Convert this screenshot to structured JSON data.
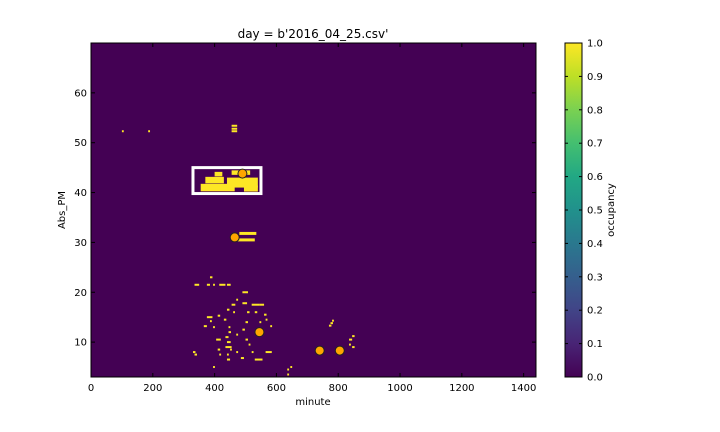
{
  "chart_data": {
    "type": "heatmap",
    "title": "day = b'2016_04_25.csv'",
    "xlabel": "minute",
    "ylabel": "Abs_PM",
    "xlim": [
      0,
      1440
    ],
    "ylim": [
      3,
      70
    ],
    "xticks": [
      0,
      200,
      400,
      600,
      800,
      1000,
      1200,
      1400
    ],
    "yticks": [
      10,
      20,
      30,
      40,
      50,
      60
    ],
    "background_value": 0.0,
    "colormap": "viridis",
    "colors": {
      "low": "#440154",
      "high": "#fde725",
      "marker": "#ffa500",
      "box": "#ffffff"
    },
    "colorbar": {
      "label": "occupancy",
      "range": [
        0,
        1
      ],
      "ticks": [
        "0.0",
        "0.1",
        "0.2",
        "0.3",
        "0.4",
        "0.5",
        "0.6",
        "0.7",
        "0.8",
        "0.9",
        "1.0"
      ]
    },
    "occupied_cells": [
      [
        100,
        52.3,
        6,
        0.4
      ],
      [
        185,
        52.3,
        6,
        0.4
      ],
      [
        455,
        53.4,
        18,
        0.4
      ],
      [
        455,
        52.8,
        18,
        0.4
      ],
      [
        455,
        52.3,
        18,
        0.4
      ],
      [
        355,
        41.0,
        110,
        1.5
      ],
      [
        370,
        42.5,
        60,
        1.3
      ],
      [
        400,
        43.7,
        25,
        0.9
      ],
      [
        440,
        42.0,
        100,
        2.0
      ],
      [
        455,
        44.0,
        60,
        0.9
      ],
      [
        495,
        40.8,
        45,
        1.2
      ],
      [
        480,
        31.8,
        55,
        0.6
      ],
      [
        475,
        30.5,
        55,
        0.6
      ],
      [
        335,
        21.5,
        15,
        0.4
      ],
      [
        385,
        23.0,
        8,
        0.4
      ],
      [
        375,
        21.5,
        10,
        0.4
      ],
      [
        395,
        21.5,
        6,
        0.4
      ],
      [
        415,
        21.5,
        20,
        0.4
      ],
      [
        440,
        21.5,
        12,
        0.4
      ],
      [
        490,
        20.0,
        18,
        0.4
      ],
      [
        470,
        18.5,
        6,
        0.4
      ],
      [
        455,
        17.5,
        12,
        0.4
      ],
      [
        490,
        17.8,
        15,
        0.4
      ],
      [
        520,
        17.5,
        25,
        0.4
      ],
      [
        545,
        17.5,
        15,
        0.4
      ],
      [
        440,
        16.5,
        8,
        0.4
      ],
      [
        460,
        16.0,
        6,
        0.4
      ],
      [
        505,
        16.0,
        8,
        0.4
      ],
      [
        530,
        16.0,
        8,
        0.4
      ],
      [
        560,
        15.5,
        8,
        0.4
      ],
      [
        410,
        15.3,
        8,
        0.4
      ],
      [
        375,
        15.0,
        18,
        0.4
      ],
      [
        385,
        14.2,
        6,
        0.4
      ],
      [
        430,
        14.5,
        8,
        0.4
      ],
      [
        500,
        14.0,
        8,
        0.4
      ],
      [
        545,
        14.0,
        6,
        0.4
      ],
      [
        565,
        14.5,
        6,
        0.4
      ],
      [
        365,
        13.2,
        10,
        0.4
      ],
      [
        395,
        13.0,
        6,
        0.4
      ],
      [
        445,
        13.0,
        6,
        0.4
      ],
      [
        490,
        12.5,
        8,
        0.4
      ],
      [
        580,
        13.2,
        6,
        0.4
      ],
      [
        445,
        12.0,
        8,
        0.4
      ],
      [
        435,
        11.0,
        10,
        0.4
      ],
      [
        470,
        11.5,
        6,
        0.4
      ],
      [
        405,
        10.5,
        15,
        0.4
      ],
      [
        440,
        10.0,
        12,
        0.4
      ],
      [
        500,
        10.5,
        8,
        0.4
      ],
      [
        435,
        9.0,
        20,
        0.4
      ],
      [
        450,
        8.5,
        6,
        0.4
      ],
      [
        510,
        9.5,
        6,
        0.4
      ],
      [
        520,
        8.0,
        6,
        0.4
      ],
      [
        330,
        8.0,
        8,
        0.4
      ],
      [
        335,
        7.5,
        8,
        0.4
      ],
      [
        410,
        8.5,
        8,
        0.4
      ],
      [
        415,
        7.5,
        6,
        0.4
      ],
      [
        440,
        7.5,
        6,
        0.4
      ],
      [
        470,
        8.0,
        6,
        0.4
      ],
      [
        565,
        8.0,
        20,
        0.4
      ],
      [
        440,
        6.5,
        10,
        0.4
      ],
      [
        485,
        6.8,
        10,
        0.4
      ],
      [
        530,
        6.5,
        25,
        0.4
      ],
      [
        395,
        5.0,
        6,
        0.4
      ],
      [
        635,
        4.5,
        6,
        0.4
      ],
      [
        635,
        3.5,
        6,
        0.4
      ],
      [
        645,
        5.0,
        6,
        0.4
      ],
      [
        775,
        13.8,
        8,
        0.4
      ],
      [
        770,
        13.3,
        8,
        0.4
      ],
      [
        780,
        14.3,
        6,
        0.4
      ],
      [
        835,
        10.5,
        10,
        0.4
      ],
      [
        845,
        11.2,
        8,
        0.4
      ],
      [
        835,
        9.5,
        6,
        0.4
      ],
      [
        845,
        9.0,
        8,
        0.4
      ]
    ],
    "box": {
      "x0": 330,
      "x1": 550,
      "y0": 39.8,
      "y1": 45.0
    },
    "markers": [
      {
        "x": 490,
        "y": 43.8
      },
      {
        "x": 465,
        "y": 31.0
      },
      {
        "x": 545,
        "y": 12.0
      },
      {
        "x": 740,
        "y": 8.3
      },
      {
        "x": 805,
        "y": 8.3
      }
    ]
  }
}
